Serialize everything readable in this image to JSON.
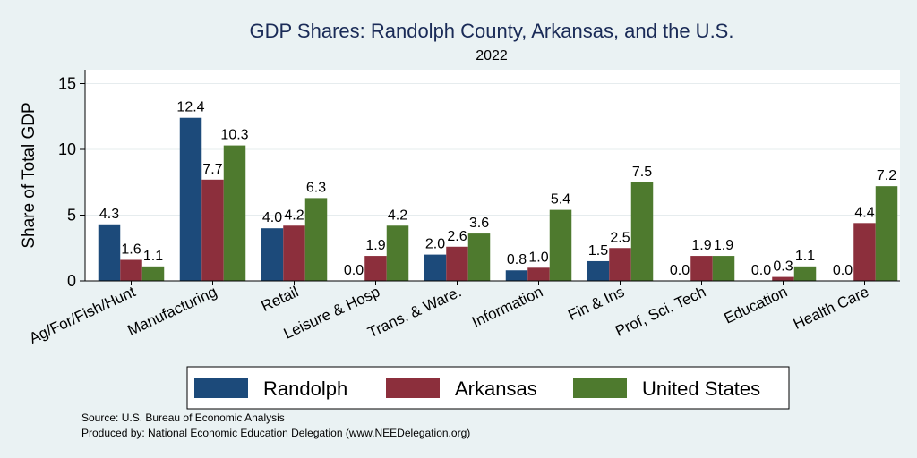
{
  "chart_data": {
    "type": "bar",
    "title": "GDP Shares: Randolph County, Arkansas, and the U.S.",
    "subtitle": "2022",
    "ylabel": "Share of Total GDP",
    "xlabel": "",
    "ylim": [
      0,
      16
    ],
    "yticks": [
      0,
      5,
      10,
      15
    ],
    "grid": "horizontal",
    "legend_position": "bottom",
    "categories": [
      "Ag/For/Fish/Hunt",
      "Manufacturing",
      "Retail",
      "Leisure & Hosp",
      "Trans. & Ware.",
      "Information",
      "Fin & Ins",
      "Prof, Sci, Tech",
      "Education",
      "Health Care"
    ],
    "series": [
      {
        "name": "Randolph",
        "color": "#1c4a7a",
        "values": [
          4.3,
          12.4,
          4.0,
          0.0,
          2.0,
          0.8,
          1.5,
          0.0,
          0.0,
          0.0
        ],
        "labels": [
          "4.3",
          "12.4",
          "4.0",
          "0.0",
          "2.0",
          "0.8",
          "1.5",
          "0.0",
          "0.0",
          "0.0"
        ]
      },
      {
        "name": "Arkansas",
        "color": "#8c2f3c",
        "values": [
          1.6,
          7.7,
          4.2,
          1.9,
          2.6,
          1.0,
          2.5,
          1.9,
          0.3,
          4.4
        ],
        "labels": [
          "1.6",
          "7.7",
          "4.2",
          "1.9",
          "2.6",
          "1.0",
          "2.5",
          "1.9",
          "0.3",
          "4.4"
        ]
      },
      {
        "name": "United States",
        "color": "#4e7a2e",
        "values": [
          1.1,
          10.3,
          6.3,
          4.2,
          3.6,
          5.4,
          7.5,
          1.9,
          1.1,
          7.2
        ],
        "labels": [
          "1.1",
          "10.3",
          "6.3",
          "4.2",
          "3.6",
          "5.4",
          "7.5",
          "1.9",
          "1.1",
          "7.2"
        ]
      }
    ],
    "source_note": "Source: U.S. Bureau of Economic Analysis",
    "produced_note": "Produced by: National Economic Education Delegation (www.NEEDelegation.org)"
  }
}
